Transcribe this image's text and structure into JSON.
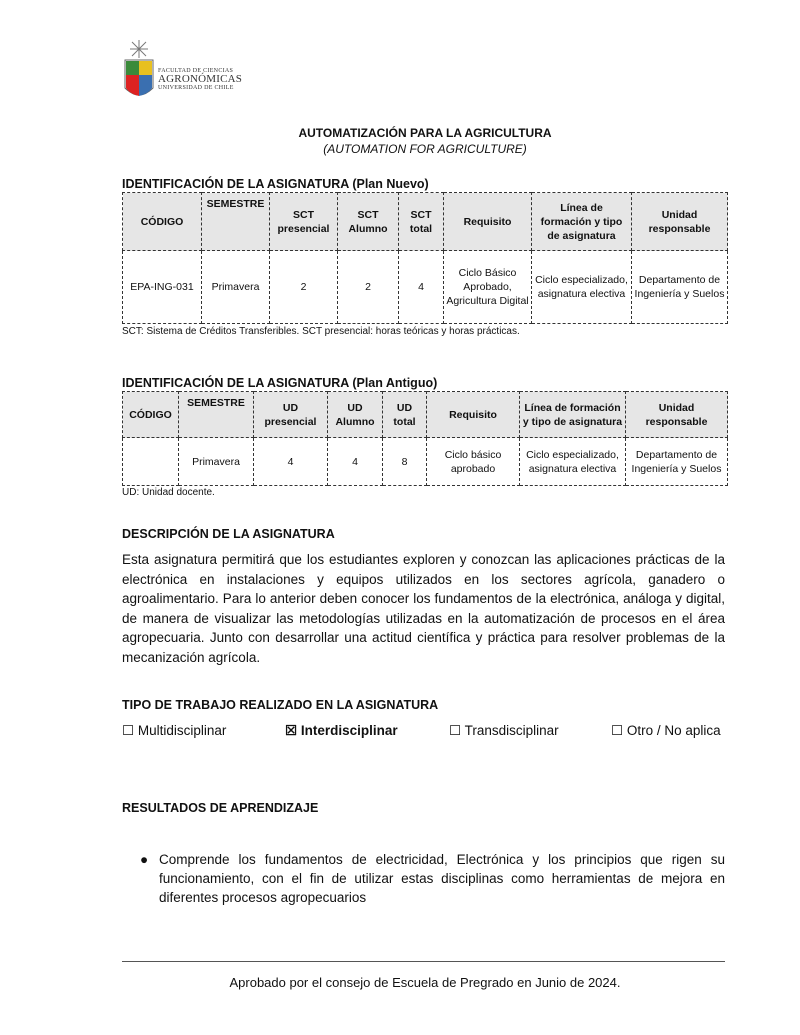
{
  "header": {
    "logo_text": [
      "FACULTAD DE CIENCIAS",
      "AGRONÓMICAS",
      "UNIVERSIDAD DE CHILE"
    ],
    "title": "AUTOMATIZACIÓN PARA LA AGRICULTURA",
    "subtitle": "(AUTOMATION FOR AGRICULTURE)"
  },
  "plan_nuevo": {
    "heading": "IDENTIFICACIÓN DE LA ASIGNATURA (Plan Nuevo)",
    "columns": [
      "CÓDIGO",
      "SEMESTRE",
      "SCT presencial",
      "SCT Alumno",
      "SCT total",
      "Requisito",
      "Línea de formación y tipo de asignatura",
      "Unidad responsable"
    ],
    "row": [
      "EPA-ING-031",
      "Primavera",
      "2",
      "2",
      "4",
      "Ciclo Básico Aprobado, Agricultura Digital",
      "Ciclo especializado, asignatura electiva",
      "Departamento de Ingeniería y Suelos"
    ],
    "note": "SCT: Sistema de Créditos Transferibles. SCT presencial: horas teóricas y horas prácticas."
  },
  "plan_antiguo": {
    "heading": "IDENTIFICACIÓN DE LA ASIGNATURA (Plan Antiguo)",
    "columns": [
      "CÓDIGO",
      "SEMESTRE",
      "UD presencial",
      "UD Alumno",
      "UD total",
      "Requisito",
      "Línea de formación y tipo de asignatura",
      "Unidad responsable"
    ],
    "row": [
      "",
      "Primavera",
      "4",
      "4",
      "8",
      "Ciclo básico aprobado",
      "Ciclo especializado, asignatura electiva",
      "Departamento de Ingeniería y Suelos"
    ],
    "note": "UD: Unidad docente."
  },
  "descripcion": {
    "heading": "DESCRIPCIÓN DE LA ASIGNATURA",
    "text": "Esta asignatura permitirá que los estudiantes exploren y conozcan las aplicaciones prácticas de la electrónica en instalaciones y equipos utilizados en los sectores agrícola, ganadero o agroalimentario. Para lo anterior deben conocer los fundamentos de la electrónica, análoga y digital, de manera de visualizar las metodologías utilizadas en la automatización de procesos en el área agropecuaria. Junto con desarrollar una actitud científica y práctica para resolver problemas de la mecanización agrícola."
  },
  "tipo_trabajo": {
    "heading": "TIPO DE TRABAJO REALIZADO EN LA ASIGNATURA",
    "options": [
      {
        "label": "Multidisciplinar",
        "checked": false
      },
      {
        "label": "Interdisciplinar",
        "checked": true
      },
      {
        "label": "Transdisciplinar",
        "checked": false
      },
      {
        "label": "Otro / No aplica",
        "checked": false
      }
    ]
  },
  "resultados": {
    "heading": "RESULTADOS DE APRENDIZAJE",
    "items": [
      "Comprende los fundamentos de electricidad, Electrónica y los principios que rigen su funcionamiento, con el fin de utilizar estas disciplinas como herramientas de mejora en diferentes procesos agropecuarios"
    ]
  },
  "footer": "Aprobado por el consejo de Escuela de Pregrado en Junio de 2024."
}
